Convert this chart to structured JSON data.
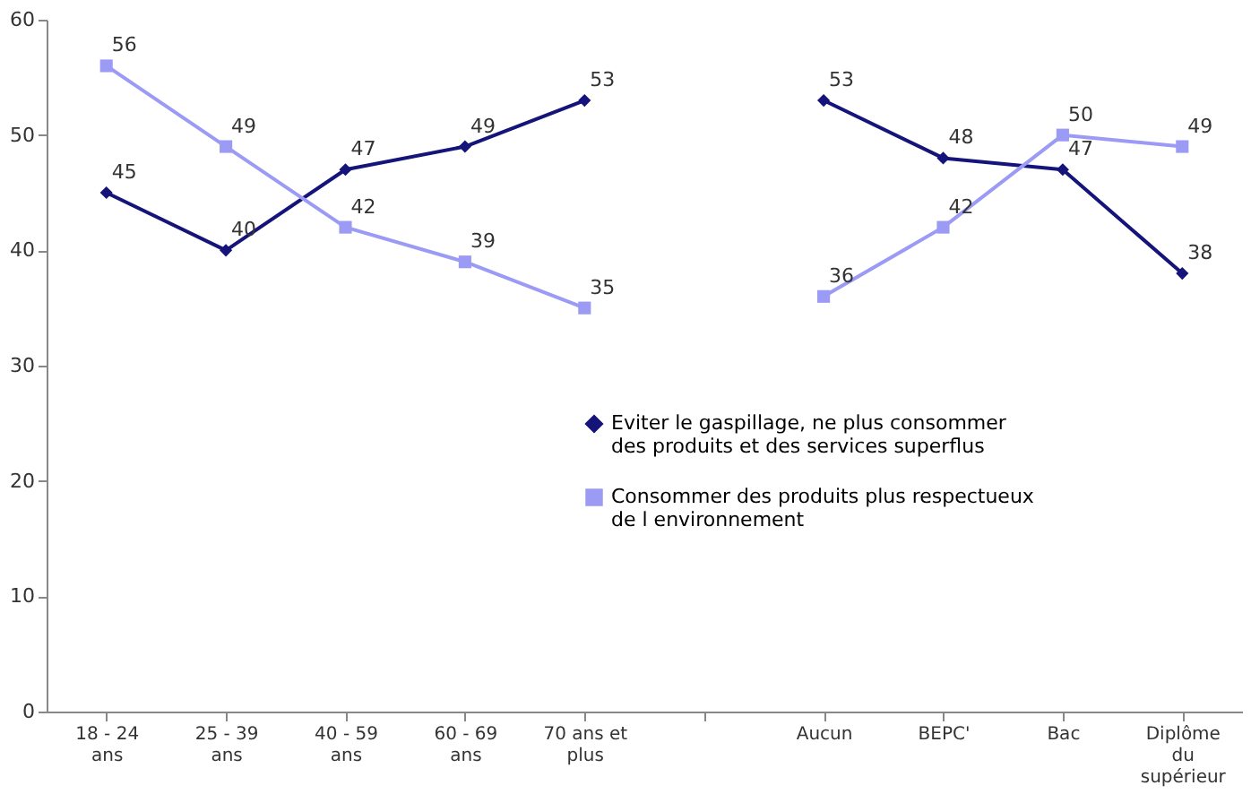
{
  "chart_data": {
    "type": "line",
    "categories": [
      "18 - 24 ans",
      "25 - 39 ans",
      "40 - 59 ans",
      "60 - 69 ans",
      "70 ans et plus",
      null,
      "Aucun",
      "BEPC'",
      "Bac",
      "Diplôme du supérieur"
    ],
    "series": [
      {
        "name": "Eviter le gaspillage, ne plus consommer des produits et des services superflus",
        "color": "#14147a",
        "marker": "diamond",
        "values": [
          45,
          40,
          47,
          49,
          53,
          null,
          53,
          48,
          47,
          38
        ]
      },
      {
        "name": "Consommer des produits plus respectueux de l environnement",
        "color": "#9b9bf5",
        "marker": "square",
        "values": [
          56,
          49,
          42,
          39,
          35,
          null,
          36,
          42,
          50,
          49
        ]
      }
    ],
    "ylim": [
      0,
      60
    ],
    "yticks": [
      0,
      10,
      20,
      30,
      40,
      50,
      60
    ],
    "grid": false,
    "legend": "right",
    "data_labels": true,
    "line_style": "solid"
  }
}
